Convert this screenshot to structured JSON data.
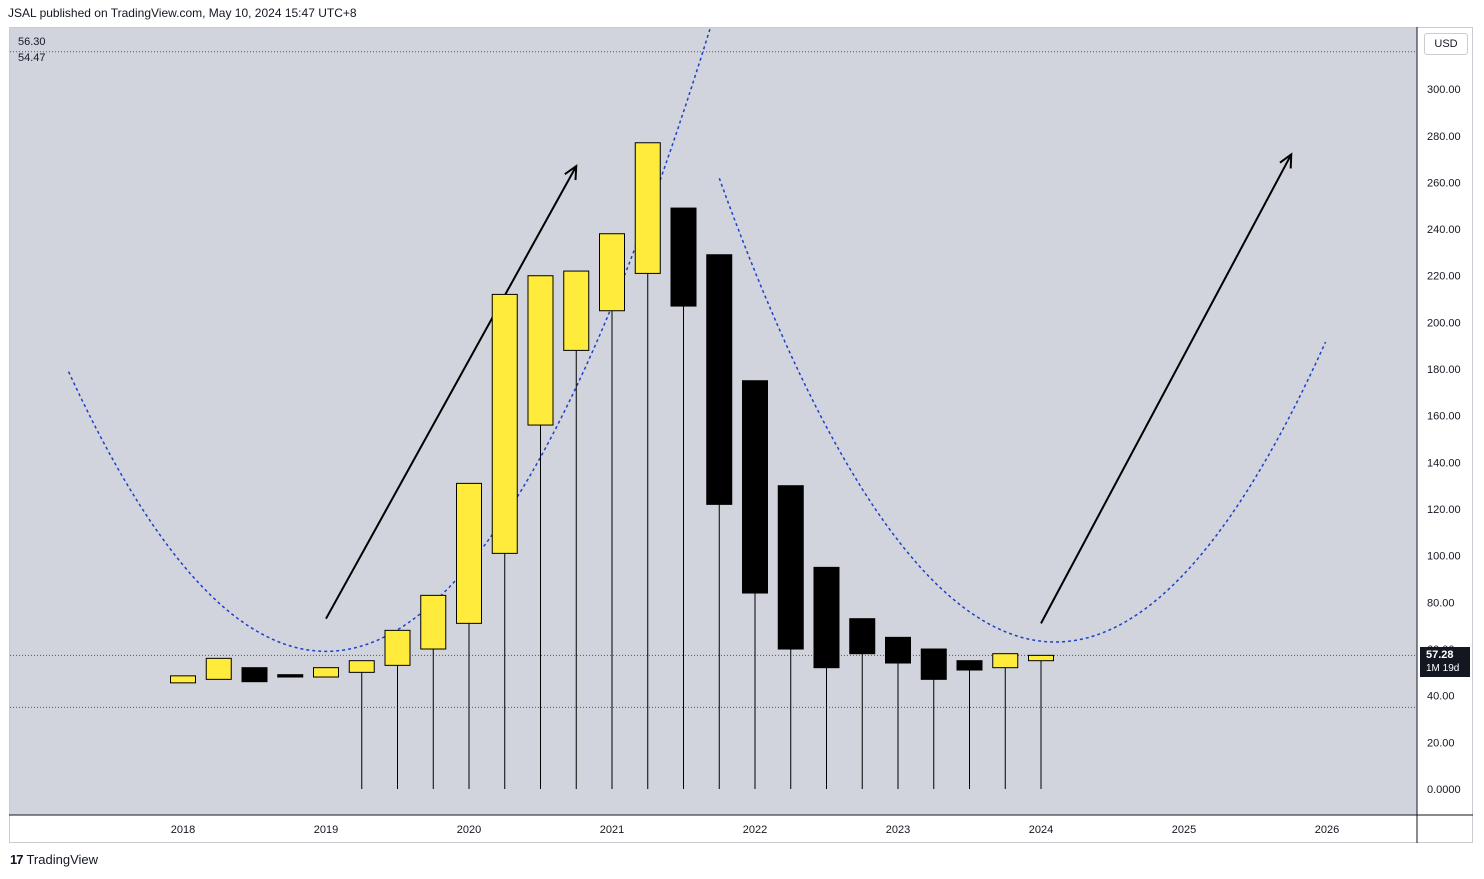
{
  "header": {
    "published": "JSAL published on TradingView.com, May 10, 2024 15:47 UTC+8"
  },
  "currency": "USD",
  "ohlc": {
    "top": "56.30",
    "bottom": "54.47"
  },
  "last_price": {
    "value": "57.28",
    "countdown": "1M 19d"
  },
  "footer": {
    "brand": "TradingView",
    "logo": "17"
  },
  "colors": {
    "background": "#d1d4dc",
    "up": "#ffeb3b",
    "down": "#000000",
    "curve": "#1e40c8",
    "arrow": "#000000"
  },
  "chart_data": {
    "type": "candlestick",
    "interval": "quarterly",
    "currency": "USD",
    "ylim": [
      -8,
      324
    ],
    "y_ticks": [
      "300.00",
      "280.00",
      "260.00",
      "240.00",
      "220.00",
      "200.00",
      "180.00",
      "160.00",
      "140.00",
      "120.00",
      "100.00",
      "80.00",
      "60.00",
      "40.00",
      "20.00",
      "0.0000"
    ],
    "x_ticks": [
      {
        "label": "2018",
        "t": 2018.0
      },
      {
        "label": "2019",
        "t": 2019.0
      },
      {
        "label": "2020",
        "t": 2020.0
      },
      {
        "label": "2021",
        "t": 2021.0
      },
      {
        "label": "2022",
        "t": 2022.0
      },
      {
        "label": "2023",
        "t": 2023.0
      },
      {
        "label": "2024",
        "t": 2024.0
      },
      {
        "label": "2025",
        "t": 2025.0
      },
      {
        "label": "2026",
        "t": 2026.0
      }
    ],
    "candles": [
      {
        "t": 2018.0,
        "o": 45.5,
        "h": 48.5,
        "l": 45.5,
        "c": 48.5
      },
      {
        "t": 2018.25,
        "o": 47,
        "h": 56,
        "l": 47,
        "c": 56
      },
      {
        "t": 2018.5,
        "o": 52,
        "h": 52,
        "l": 46,
        "c": 46
      },
      {
        "t": 2018.75,
        "o": 49,
        "h": 49,
        "l": 48,
        "c": 48
      },
      {
        "t": 2019.0,
        "o": 48,
        "h": 52,
        "l": 48,
        "c": 52
      },
      {
        "t": 2019.25,
        "o": 50,
        "h": 55,
        "l": 0,
        "c": 55
      },
      {
        "t": 2019.5,
        "o": 53,
        "h": 68,
        "l": 0,
        "c": 68
      },
      {
        "t": 2019.75,
        "o": 60,
        "h": 83,
        "l": 0,
        "c": 83
      },
      {
        "t": 2020.0,
        "o": 71,
        "h": 131,
        "l": 0,
        "c": 131
      },
      {
        "t": 2020.25,
        "o": 101,
        "h": 212,
        "l": 0,
        "c": 212
      },
      {
        "t": 2020.5,
        "o": 156,
        "h": 220,
        "l": 0,
        "c": 220
      },
      {
        "t": 2020.75,
        "o": 188,
        "h": 222,
        "l": 0,
        "c": 222
      },
      {
        "t": 2021.0,
        "o": 205,
        "h": 238,
        "l": 0,
        "c": 238
      },
      {
        "t": 2021.25,
        "o": 221,
        "h": 277,
        "l": 0,
        "c": 277
      },
      {
        "t": 2021.5,
        "o": 249,
        "h": 249,
        "l": 0,
        "c": 207
      },
      {
        "t": 2021.75,
        "o": 229,
        "h": 229,
        "l": 0,
        "c": 122
      },
      {
        "t": 2022.0,
        "o": 175,
        "h": 175,
        "l": 0,
        "c": 84
      },
      {
        "t": 2022.25,
        "o": 130,
        "h": 130,
        "l": 0,
        "c": 60
      },
      {
        "t": 2022.5,
        "o": 95,
        "h": 95,
        "l": 0,
        "c": 52
      },
      {
        "t": 2022.75,
        "o": 73,
        "h": 73,
        "l": 0,
        "c": 58
      },
      {
        "t": 2023.0,
        "o": 65,
        "h": 65,
        "l": 0,
        "c": 54
      },
      {
        "t": 2023.25,
        "o": 60,
        "h": 60,
        "l": 0,
        "c": 47
      },
      {
        "t": 2023.5,
        "o": 55,
        "h": 55,
        "l": 0,
        "c": 51
      },
      {
        "t": 2023.75,
        "o": 52,
        "h": 58,
        "l": 0,
        "c": 58
      },
      {
        "t": 2024.0,
        "o": 55,
        "h": 57.28,
        "l": 0,
        "c": 57.28
      }
    ],
    "horizontal_lines": [
      316,
      57.28,
      35
    ],
    "arc_curves": [
      {
        "vertex_t": 2019.0,
        "vertex_y": 59,
        "scale": 37,
        "range": [
          2017.2,
          2021.75
        ]
      },
      {
        "vertex_t": 2024.1,
        "vertex_y": 63,
        "scale": 36,
        "range": [
          2021.75,
          2026.0
        ]
      }
    ],
    "arrows": [
      {
        "from": [
          2019.0,
          73
        ],
        "to": [
          2020.75,
          267
        ]
      },
      {
        "from": [
          2024.0,
          71
        ],
        "to": [
          2025.75,
          272
        ]
      }
    ],
    "grid": false,
    "legend": "none"
  }
}
